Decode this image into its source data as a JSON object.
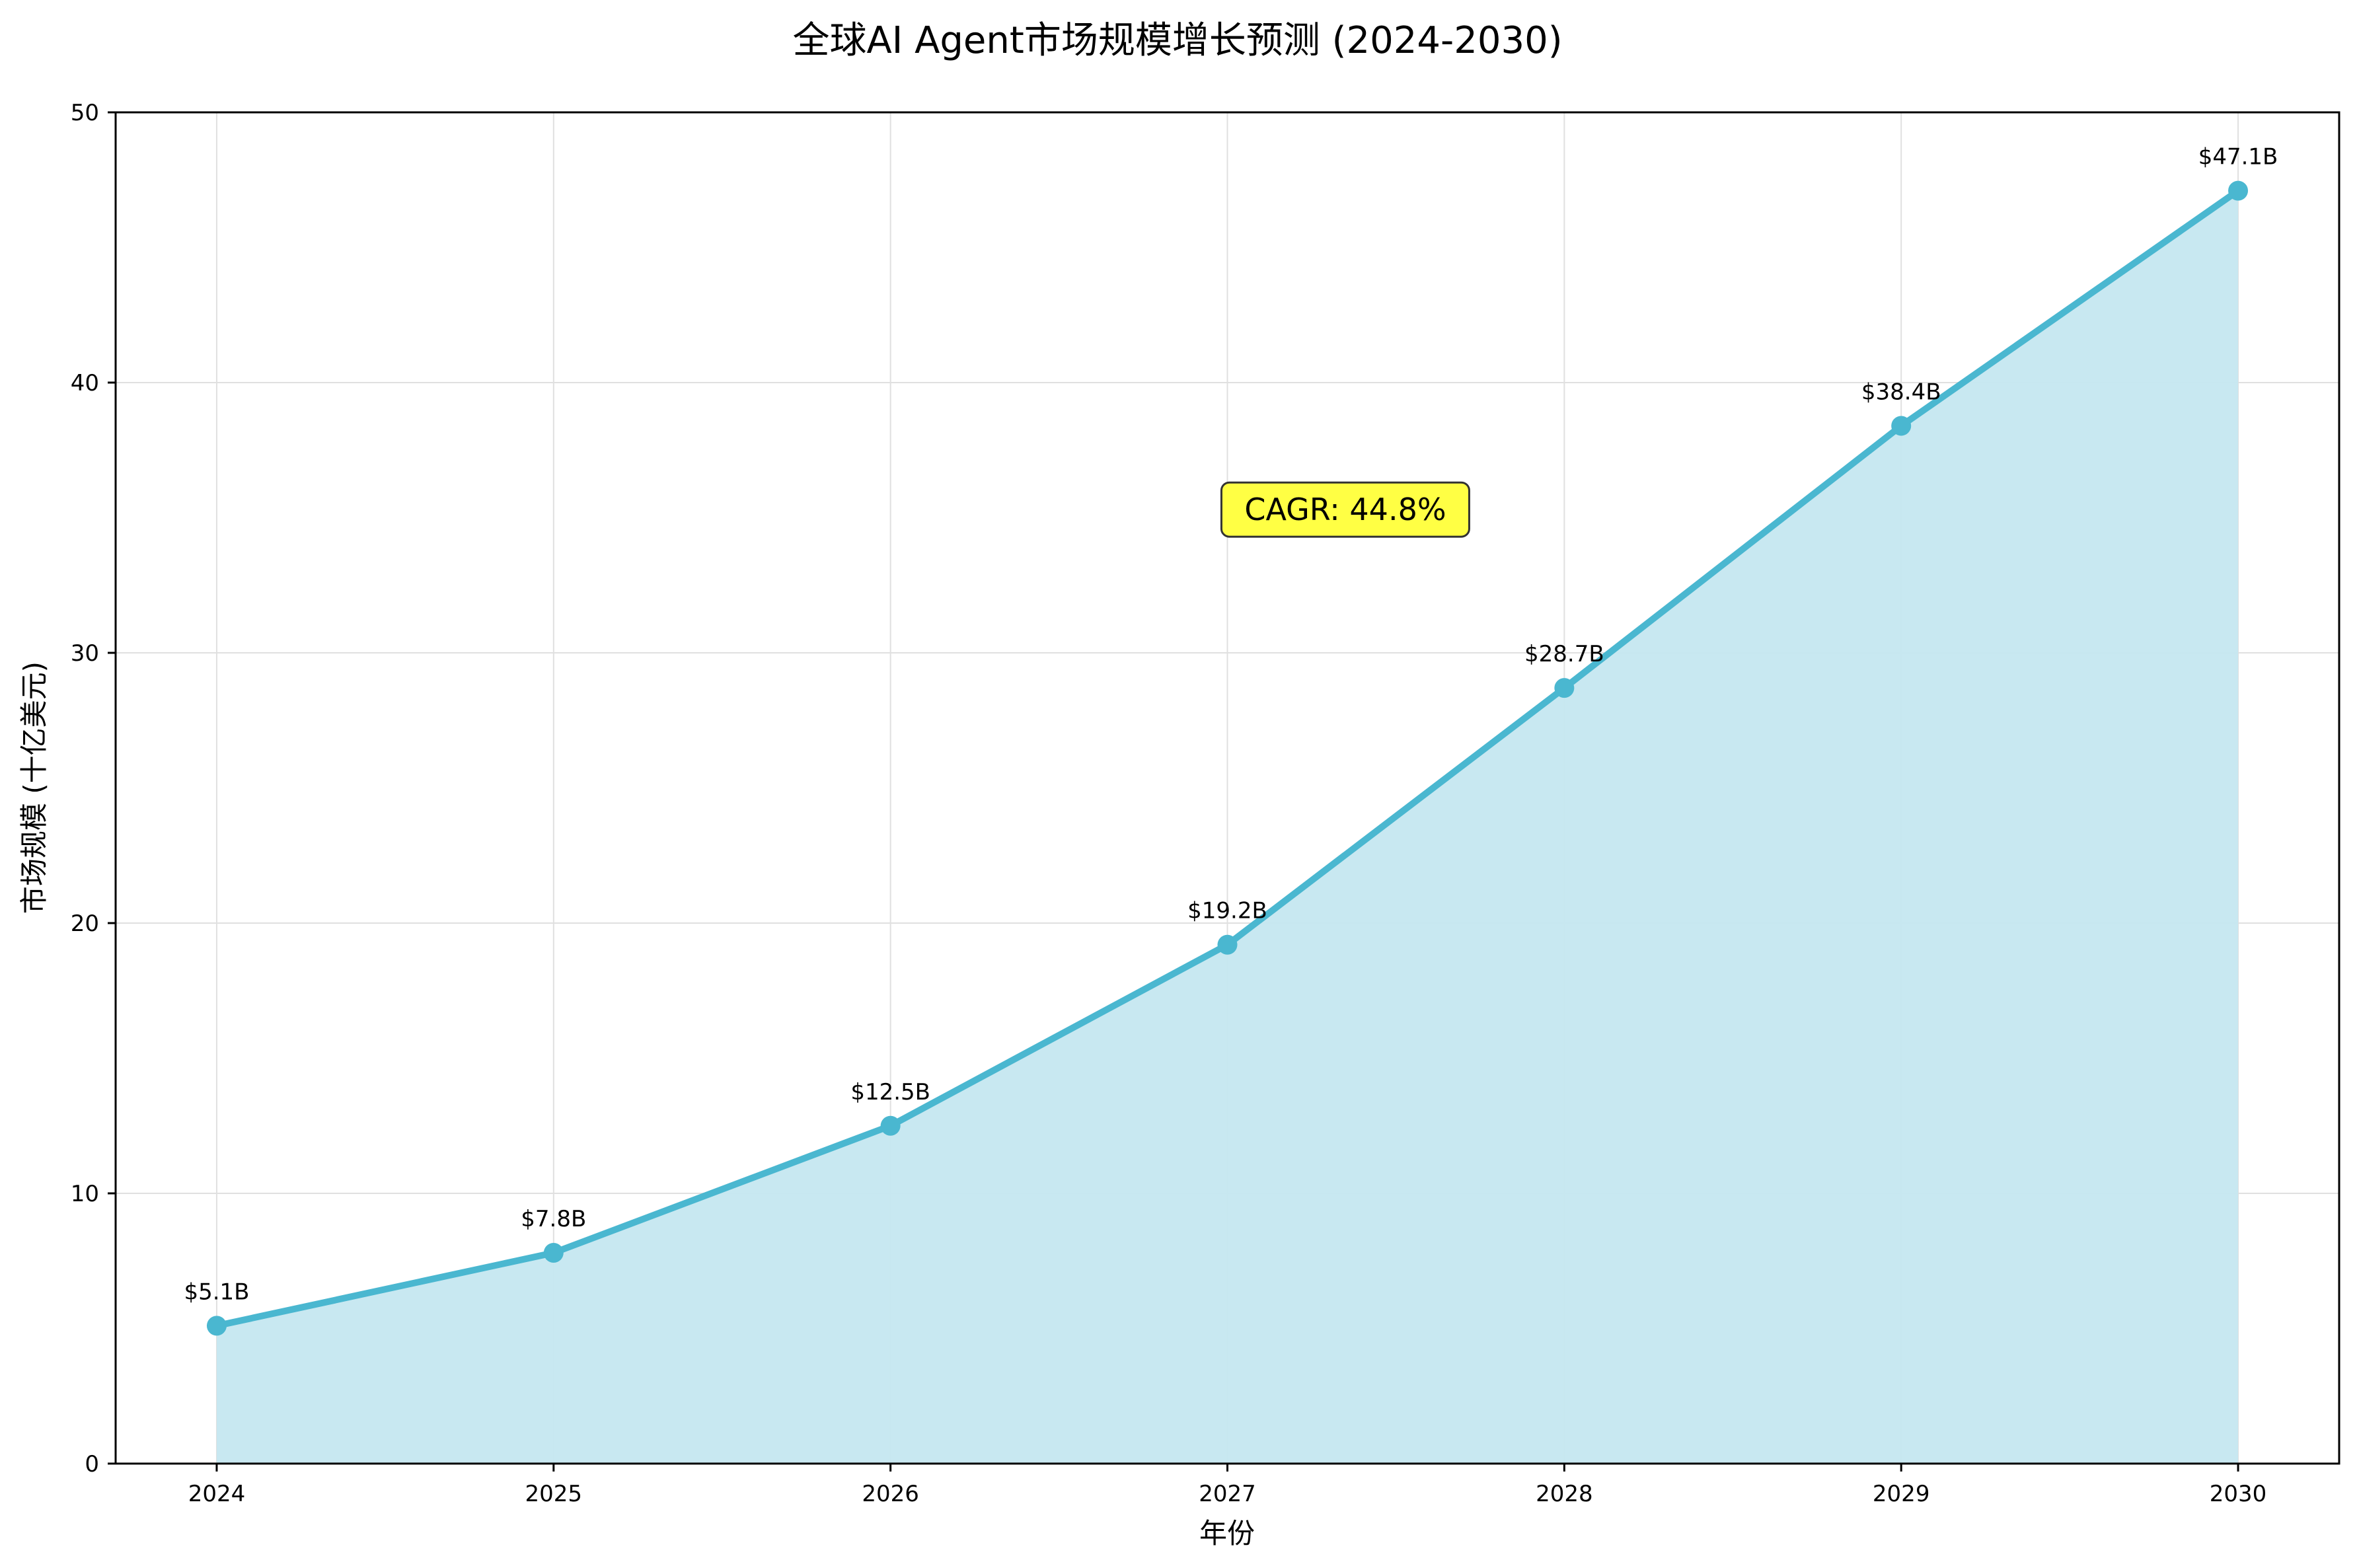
{
  "chart_data": {
    "type": "area",
    "title": "全球AI Agent市场规模增长预测 (2024-2030)",
    "xlabel": "年份",
    "ylabel": "市场规模 (十亿美元)",
    "x": [
      2024,
      2025,
      2026,
      2027,
      2028,
      2029,
      2030
    ],
    "values": [
      5.1,
      7.8,
      12.5,
      19.2,
      28.7,
      38.4,
      47.1
    ],
    "data_labels": [
      "$5.1B",
      "$7.8B",
      "$12.5B",
      "$19.2B",
      "$28.7B",
      "$38.4B",
      "$47.1B"
    ],
    "xticks": [
      "2024",
      "2025",
      "2026",
      "2027",
      "2028",
      "2029",
      "2030"
    ],
    "yticks": [
      "0",
      "10",
      "20",
      "30",
      "40",
      "50"
    ],
    "ytick_values": [
      0,
      10,
      20,
      30,
      40,
      50
    ],
    "xlim": [
      2023.7,
      2030.3
    ],
    "ylim": [
      0,
      50
    ],
    "grid": true,
    "annotation": {
      "text": "CAGR: 44.8%",
      "x": 2027.35,
      "y": 35.3
    },
    "colors": {
      "line": "#4ab7d0",
      "fill": "#c5e7f0",
      "annotation_bg": "#ffff44",
      "grid": "#e0e0e0"
    }
  }
}
